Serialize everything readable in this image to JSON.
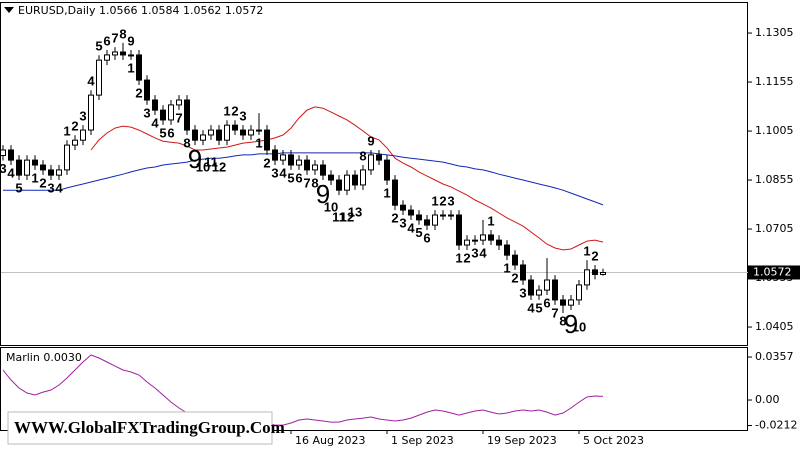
{
  "chart_data": [
    {
      "type": "candlestick",
      "title": "EURUSD,Daily  1.0566 1.0584 1.0562 1.0572",
      "categories": [
        null,
        null,
        null,
        null,
        null,
        null,
        null,
        null,
        null,
        null,
        null,
        null,
        null,
        null,
        null,
        null,
        null,
        null,
        null,
        null,
        null,
        null,
        null,
        null,
        null,
        null,
        null,
        null,
        null,
        null,
        null,
        null,
        null,
        null,
        null,
        null,
        "16 Aug 2023",
        null,
        null,
        null,
        null,
        null,
        null,
        null,
        null,
        null,
        null,
        null,
        "1 Sep 2023",
        null,
        null,
        null,
        null,
        null,
        null,
        null,
        null,
        null,
        null,
        null,
        "19 Sep 2023",
        null,
        null,
        null,
        null,
        null,
        null,
        null,
        null,
        null,
        null,
        null,
        "5 Oct 2023",
        null,
        null,
        null
      ],
      "open": [
        1.093,
        1.0947,
        1.0916,
        1.087,
        1.0916,
        1.0901,
        1.0886,
        1.087,
        1.0886,
        1.0962,
        1.0977,
        1.1008,
        1.1115,
        1.1222,
        1.1238,
        1.1247,
        1.1238,
        1.1238,
        1.1161,
        1.11,
        1.1069,
        1.1039,
        1.1085,
        1.11,
        1.1008,
        1.0977,
        1.0993,
        1.1008,
        1.0977,
        1.1023,
        1.1008,
        1.0993,
        1.1008,
        1.1008,
        1.0947,
        1.0916,
        1.0932,
        1.0901,
        1.0916,
        1.0886,
        1.0901,
        1.087,
        1.0855,
        1.0824,
        1.087,
        1.084,
        1.0886,
        1.0932,
        1.0916,
        1.0855,
        1.0778,
        1.0763,
        1.0748,
        1.0733,
        1.0717,
        1.0748,
        1.0748,
        1.0748,
        1.0656,
        1.0671,
        1.0671,
        1.0687,
        1.0671,
        1.0656,
        1.0625,
        1.0595,
        1.0549,
        1.0503,
        1.0518,
        1.0549,
        1.0488,
        1.0472,
        1.0488,
        1.0534,
        1.058,
        1.0566
      ],
      "high": [
        1.0962,
        1.0962,
        1.0931,
        1.0931,
        1.0931,
        1.0916,
        1.0901,
        1.0901,
        1.0977,
        1.0992,
        1.1023,
        1.113,
        1.1237,
        1.1253,
        1.1262,
        1.1275,
        1.1253,
        1.1253,
        1.1176,
        1.1115,
        1.1084,
        1.11,
        1.1115,
        1.1115,
        1.1023,
        1.1008,
        1.1023,
        1.1023,
        1.1038,
        1.1038,
        1.1023,
        1.1023,
        1.106,
        1.1023,
        1.0962,
        1.0947,
        1.0947,
        1.0931,
        1.0931,
        1.0916,
        1.0916,
        1.0885,
        1.087,
        1.0885,
        1.0885,
        1.0901,
        1.0947,
        1.0947,
        1.0931,
        1.087,
        1.0793,
        1.0778,
        1.0763,
        1.0748,
        1.0763,
        1.0763,
        1.0763,
        1.0763,
        1.0686,
        1.0686,
        1.0733,
        1.0702,
        1.0686,
        1.0671,
        1.064,
        1.061,
        1.0564,
        1.0533,
        1.0616,
        1.0564,
        1.0503,
        1.0503,
        1.0549,
        1.061,
        1.0595,
        1.0584
      ],
      "low": [
        1.0915,
        1.0901,
        1.0855,
        1.0855,
        1.0886,
        1.0871,
        1.0855,
        1.0855,
        1.0871,
        1.0947,
        1.0962,
        1.0993,
        1.11,
        1.1207,
        1.1223,
        1.1223,
        1.1223,
        1.1146,
        1.1085,
        1.1054,
        1.1024,
        1.1024,
        1.107,
        1.0993,
        1.0962,
        1.0962,
        1.0978,
        1.0962,
        1.0962,
        1.0993,
        1.0978,
        1.0978,
        1.0993,
        1.0932,
        1.0901,
        1.0901,
        1.0886,
        1.0886,
        1.0871,
        1.0871,
        1.0855,
        1.084,
        1.0809,
        1.0809,
        1.0825,
        1.0825,
        1.0871,
        1.0901,
        1.084,
        1.0763,
        1.0748,
        1.0733,
        1.0718,
        1.0702,
        1.0702,
        1.0733,
        1.0733,
        1.0641,
        1.0641,
        1.0656,
        1.0656,
        1.0656,
        1.0641,
        1.061,
        1.058,
        1.0534,
        1.0488,
        1.0488,
        1.0503,
        1.0473,
        1.0448,
        1.0457,
        1.0473,
        1.0519,
        1.0551,
        1.0562
      ],
      "close": [
        1.0947,
        1.0916,
        1.087,
        1.0916,
        1.0901,
        1.0886,
        1.087,
        1.0886,
        1.0962,
        1.0977,
        1.1008,
        1.1115,
        1.1222,
        1.1238,
        1.1247,
        1.1238,
        1.1238,
        1.1161,
        1.11,
        1.1069,
        1.1039,
        1.1085,
        1.11,
        1.1008,
        1.0977,
        1.0993,
        1.1008,
        1.0977,
        1.1023,
        1.1008,
        1.0993,
        1.1008,
        1.1008,
        1.0947,
        1.0916,
        1.0932,
        1.0901,
        1.0916,
        1.0886,
        1.0901,
        1.087,
        1.0855,
        1.0824,
        1.087,
        1.084,
        1.0886,
        1.0932,
        1.0916,
        1.0855,
        1.0778,
        1.0763,
        1.0748,
        1.0733,
        1.0717,
        1.0748,
        1.0748,
        1.0748,
        1.0656,
        1.0671,
        1.0671,
        1.0687,
        1.0671,
        1.0656,
        1.0625,
        1.0595,
        1.0549,
        1.0503,
        1.0518,
        1.0549,
        1.0488,
        1.0472,
        1.0488,
        1.0534,
        1.058,
        1.0566,
        1.0572
      ],
      "up_color": "#ffffff",
      "down_color": "#000000",
      "series": [
        {
          "color": "#d01818",
          "values": [
            null,
            null,
            null,
            null,
            null,
            null,
            null,
            null,
            null,
            null,
            null,
            1.0947,
            1.0978,
            1.0999,
            1.1014,
            1.102,
            1.1017,
            1.1008,
            1.0996,
            1.0984,
            1.0974,
            1.0971,
            1.0968,
            1.0959,
            1.0947,
            1.0947,
            1.095,
            1.0953,
            1.0956,
            1.0962,
            1.0968,
            1.0971,
            1.0974,
            1.0978,
            1.0984,
            1.0993,
            1.1014,
            1.1045,
            1.1069,
            1.1079,
            1.1075,
            1.1063,
            1.1051,
            1.1039,
            1.1023,
            1.1005,
            1.0987,
            1.0978,
            1.0953,
            1.0922,
            1.0907,
            1.0895,
            1.088,
            1.0867,
            1.0855,
            1.0843,
            1.0834,
            1.0821,
            1.0809,
            1.0794,
            1.0782,
            1.0769,
            1.0754,
            1.0739,
            1.0727,
            1.0714,
            1.0696,
            1.0678,
            1.0659,
            1.0647,
            1.0641,
            1.0644,
            1.0656,
            1.0668,
            1.0671,
            1.0665
          ]
        },
        {
          "color": "#1028b8",
          "values": [
            1.0824,
            1.0824,
            1.0824,
            1.0824,
            1.0824,
            1.0824,
            1.0824,
            1.0824,
            1.0831,
            1.0837,
            1.0843,
            1.0849,
            1.0855,
            1.0861,
            1.0867,
            1.0873,
            1.088,
            1.0886,
            1.0892,
            1.0895,
            1.0901,
            1.0904,
            1.0907,
            1.091,
            1.0916,
            1.0919,
            1.0922,
            1.0922,
            1.0925,
            1.0929,
            1.0932,
            1.0932,
            1.0935,
            1.0935,
            1.0935,
            1.0938,
            1.0938,
            1.0938,
            1.0938,
            1.0938,
            1.0938,
            1.0938,
            1.0938,
            1.0938,
            1.0938,
            1.0938,
            1.0938,
            1.0935,
            1.0932,
            1.0929,
            1.0925,
            1.0922,
            1.0919,
            1.0916,
            1.0913,
            1.091,
            1.0904,
            1.0898,
            1.0895,
            1.0889,
            1.0886,
            1.088,
            1.0873,
            1.0867,
            1.0861,
            1.0855,
            1.0849,
            1.0843,
            1.0837,
            1.0831,
            1.0824,
            1.0815,
            1.0806,
            1.0797,
            1.0788,
            1.0779
          ]
        }
      ],
      "counts": [
        {
          "color": "#e01010",
          "placement": "below",
          "labels": [
            "3",
            "4",
            "5",
            null,
            "1",
            "2",
            "3",
            "4",
            null,
            null,
            null,
            null,
            null,
            null,
            null,
            null,
            "1",
            "2",
            "3",
            "4",
            "5",
            "6",
            "7",
            "8",
            "9",
            null,
            null,
            null,
            null,
            null,
            null,
            null,
            "1",
            "2",
            "3",
            "4",
            "5",
            "6",
            "7",
            "8",
            "9",
            null,
            null,
            null,
            null,
            null,
            null,
            null,
            "1",
            "2",
            "3",
            "4",
            "5",
            "6",
            null,
            null,
            null,
            "1",
            "2",
            "3",
            "4",
            null,
            null,
            "1",
            "2",
            "3",
            "4",
            "5",
            "6",
            "7",
            "8",
            "9",
            null,
            null,
            null,
            null
          ]
        },
        {
          "color": "#f5a000",
          "placement": "below",
          "labels": [
            null,
            null,
            null,
            null,
            null,
            null,
            null,
            null,
            null,
            null,
            null,
            null,
            null,
            null,
            null,
            null,
            null,
            null,
            null,
            null,
            null,
            null,
            null,
            null,
            null,
            "10",
            "11",
            "12",
            null,
            null,
            null,
            null,
            null,
            null,
            null,
            null,
            null,
            null,
            null,
            null,
            null,
            "10",
            "11",
            "12",
            "13",
            null,
            null,
            null,
            null,
            null,
            null,
            null,
            null,
            null,
            null,
            null,
            null,
            null,
            null,
            null,
            null,
            null,
            null,
            null,
            null,
            null,
            null,
            null,
            null,
            null,
            null,
            null,
            "10",
            null,
            null,
            null
          ]
        },
        {
          "color": "#3c64d0",
          "placement": "above",
          "labels": [
            null,
            null,
            null,
            null,
            null,
            null,
            null,
            null,
            "1",
            "2",
            "3",
            "4",
            "5",
            "6",
            "7",
            "8",
            "9",
            null,
            null,
            null,
            null,
            null,
            null,
            null,
            null,
            null,
            null,
            null,
            "1",
            "2",
            "3",
            null,
            null,
            null,
            null,
            null,
            null,
            null,
            null,
            null,
            null,
            null,
            null,
            null,
            null,
            "8",
            "9",
            null,
            null,
            null,
            null,
            null,
            null,
            null,
            "1",
            "2",
            "3",
            null,
            null,
            null,
            null,
            "1",
            null,
            null,
            null,
            null,
            null,
            null,
            null,
            null,
            null,
            null,
            null,
            "1",
            "2",
            null
          ]
        }
      ],
      "ylim": [
        1.035,
        1.1397
      ],
      "yticks": [
        1.1305,
        1.1155,
        1.1005,
        1.0855,
        1.0705,
        1.0555,
        1.0405
      ]
    },
    {
      "type": "line",
      "title": "Marlin 0.0030",
      "color": "#a020a0",
      "values": [
        0.0249,
        0.0166,
        0.01,
        0.0058,
        0.0042,
        0.0066,
        0.0083,
        0.0125,
        0.0183,
        0.0249,
        0.0316,
        0.0374,
        0.0349,
        0.0316,
        0.0282,
        0.0249,
        0.0233,
        0.0208,
        0.015,
        0.01,
        0.0042,
        -0.0017,
        -0.0066,
        -0.0108,
        -0.015,
        -0.0166,
        -0.0141,
        -0.0125,
        -0.0141,
        -0.0158,
        -0.0166,
        -0.0174,
        -0.0183,
        -0.0191,
        -0.0208,
        -0.0208,
        -0.0191,
        -0.0166,
        -0.0158,
        -0.0166,
        -0.0174,
        -0.0183,
        -0.0183,
        -0.0166,
        -0.0158,
        -0.015,
        -0.0141,
        -0.0158,
        -0.0166,
        -0.0174,
        -0.0166,
        -0.015,
        -0.0125,
        -0.01,
        -0.0083,
        -0.0091,
        -0.0108,
        -0.0125,
        -0.0108,
        -0.0091,
        -0.0083,
        -0.01,
        -0.0116,
        -0.0108,
        -0.0091,
        -0.0083,
        -0.0091,
        -0.0083,
        -0.01,
        -0.0125,
        -0.0108,
        -0.0066,
        -0.0017,
        0.0025,
        0.0033,
        0.003
      ],
      "ylim": [
        -0.0249,
        0.0432
      ],
      "yticks": [
        0.0357,
        {
          "value": 0,
          "label": "0.00"
        },
        -0.0212
      ]
    }
  ],
  "watermark": "WWW.GlobalFXTradingGroup.Com"
}
